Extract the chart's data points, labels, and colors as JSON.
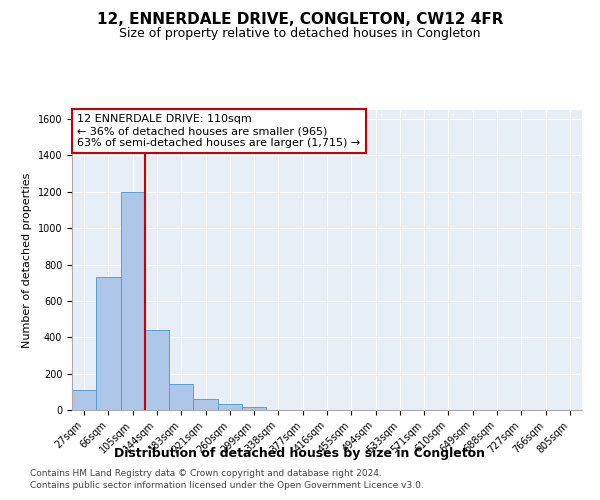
{
  "title": "12, ENNERDALE DRIVE, CONGLETON, CW12 4FR",
  "subtitle": "Size of property relative to detached houses in Congleton",
  "xlabel": "Distribution of detached houses by size in Congleton",
  "ylabel": "Number of detached properties",
  "bin_labels": [
    "27sqm",
    "66sqm",
    "105sqm",
    "144sqm",
    "183sqm",
    "221sqm",
    "260sqm",
    "299sqm",
    "338sqm",
    "377sqm",
    "416sqm",
    "455sqm",
    "494sqm",
    "533sqm",
    "571sqm",
    "610sqm",
    "649sqm",
    "688sqm",
    "727sqm",
    "766sqm",
    "805sqm"
  ],
  "bar_heights": [
    110,
    730,
    1200,
    440,
    145,
    60,
    35,
    18,
    0,
    0,
    0,
    0,
    0,
    0,
    0,
    0,
    0,
    0,
    0,
    0,
    0
  ],
  "bar_color": "#aec6e8",
  "bar_edge_color": "#5a9fd4",
  "vline_color": "#cc0000",
  "annotation_line1": "12 ENNERDALE DRIVE: 110sqm",
  "annotation_line2": "← 36% of detached houses are smaller (965)",
  "annotation_line3": "63% of semi-detached houses are larger (1,715) →",
  "annotation_box_color": "#ffffff",
  "annotation_box_edge": "#cc0000",
  "ylim": [
    0,
    1650
  ],
  "yticks": [
    0,
    200,
    400,
    600,
    800,
    1000,
    1200,
    1400,
    1600
  ],
  "footer1": "Contains HM Land Registry data © Crown copyright and database right 2024.",
  "footer2": "Contains public sector information licensed under the Open Government Licence v3.0.",
  "bg_color": "#e8eef6",
  "fig_bg_color": "#ffffff",
  "title_fontsize": 11,
  "subtitle_fontsize": 9,
  "xlabel_fontsize": 9,
  "ylabel_fontsize": 8,
  "tick_fontsize": 7,
  "annotation_fontsize": 8,
  "footer_fontsize": 6.5
}
